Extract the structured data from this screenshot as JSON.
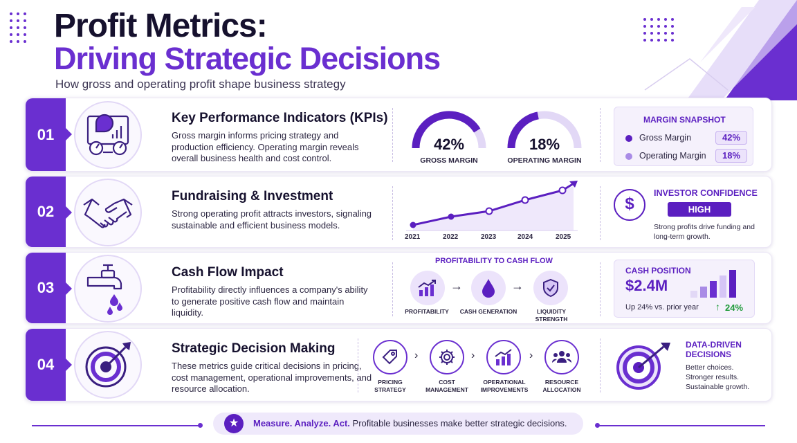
{
  "header": {
    "title_line1": "Profit Metrics:",
    "title_line2": "Driving Strategic Decisions",
    "subtitle": "How gross and operating profit shape business strategy"
  },
  "colors": {
    "accent": "#6a2fd0",
    "accent_light": "#ece3fb",
    "dark": "#16112e",
    "green": "#1f9a3a"
  },
  "rows": [
    {
      "number": "01",
      "icon": "dashboard-icon",
      "title": "Key Performance Indicators (KPIs)",
      "text": "Gross margin informs pricing strategy and production efficiency. Operating margin reveals overall business health and cost control.",
      "gauges": [
        {
          "value": "42%",
          "label": "GROSS MARGIN",
          "fraction": 0.42
        },
        {
          "value": "18%",
          "label": "OPERATING MARGIN",
          "fraction": 0.18
        }
      ],
      "snapshot": {
        "title": "MARGIN SNAPSHOT",
        "items": [
          {
            "label": "Gross Margin",
            "value": "42%"
          },
          {
            "label": "Operating Margin",
            "value": "18%"
          }
        ]
      }
    },
    {
      "number": "02",
      "icon": "handshake-icon",
      "title": "Fundraising & Investment",
      "text": "Strong operating profit attracts investors, signaling sustainable and efficient business models.",
      "chart_years": [
        "2021",
        "2022",
        "2023",
        "2024",
        "2025"
      ],
      "confidence": {
        "title": "INVESTOR CONFIDENCE",
        "level": "HIGH",
        "text": "Strong profits drive funding and long-term growth."
      }
    },
    {
      "number": "03",
      "icon": "faucet-icon",
      "title": "Cash Flow Impact",
      "text": "Profitability directly influences a company's ability to generate positive cash flow and maintain liquidity.",
      "flow": {
        "title": "PROFITABILITY TO CASH FLOW",
        "steps": [
          "PROFITABILITY",
          "CASH GENERATION",
          "LIQUIDITY STRENGTH"
        ]
      },
      "cash": {
        "title": "CASH POSITION",
        "value": "$2.4M",
        "note": "Up 24% vs. prior year",
        "change": "24%"
      }
    },
    {
      "number": "04",
      "icon": "target-icon",
      "title": "Strategic Decision Making",
      "text": "These metrics guide critical decisions in pricing, cost management, operational improvements, and resource allocation.",
      "steps": [
        "PRICING STRATEGY",
        "COST MANAGEMENT",
        "OPERATIONAL IMPROVEMENTS",
        "RESOURCE ALLOCATION"
      ],
      "data_driven": {
        "title": "DATA-DRIVEN DECISIONS",
        "lines": [
          "Better choices.",
          "Stronger results.",
          "Sustainable growth."
        ]
      }
    }
  ],
  "footer": {
    "emphasis": "Measure. Analyze. Act.",
    "text": "Profitable businesses make better strategic decisions."
  }
}
